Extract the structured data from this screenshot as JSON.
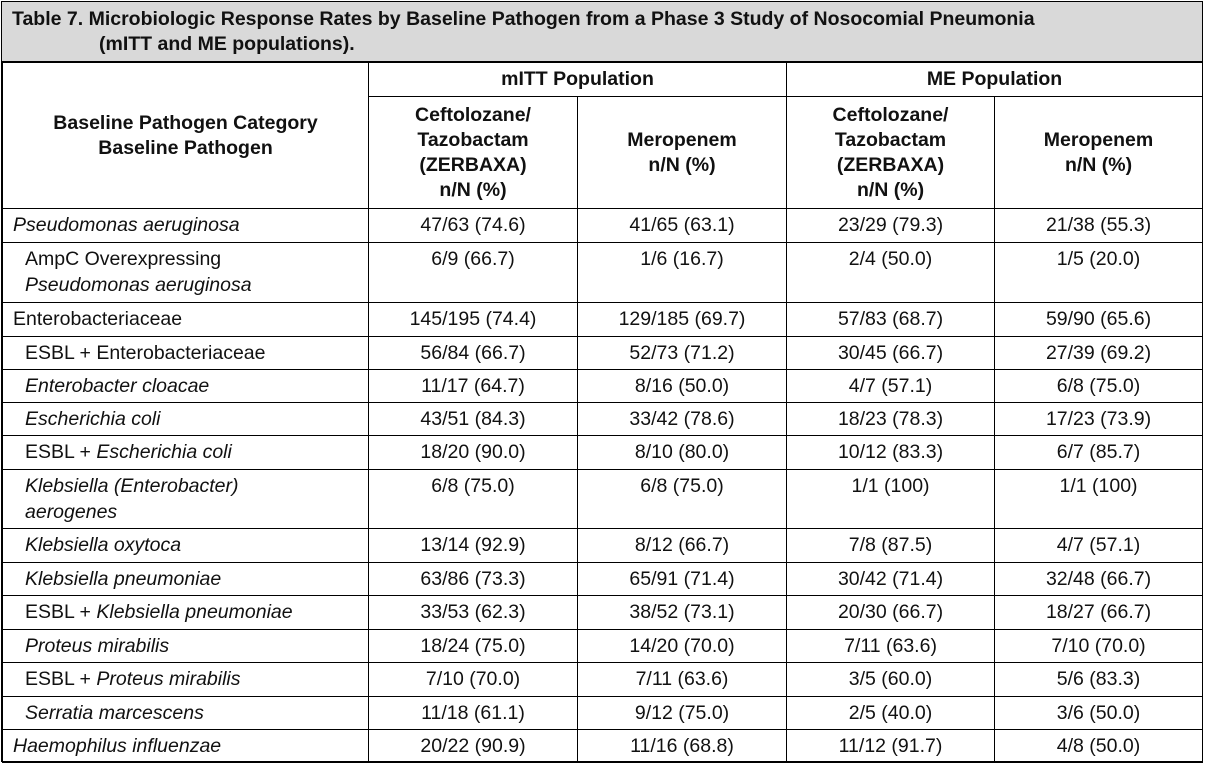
{
  "caption": {
    "line1": "Table 7. Microbiologic Response Rates by Baseline Pathogen from a Phase 3 Study of Nosocomial Pneumonia",
    "line2": "(mITT and ME populations)."
  },
  "headers": {
    "row_header_line1": "Baseline Pathogen Category",
    "row_header_line2": "Baseline Pathogen",
    "group1": "mITT Population",
    "group2": "ME Population",
    "col_cz": [
      "Ceftolozane/",
      "Tazobactam",
      "(ZERBAXA)",
      "n/N (%)"
    ],
    "col_mero": [
      "Meropenem",
      "n/N (%)"
    ]
  },
  "rows": [
    {
      "prefix": "",
      "name": "Pseudomonas aeruginosa",
      "name2": "",
      "values": [
        "47/63 (74.6)",
        "41/65 (63.1)",
        "23/29 (79.3)",
        "21/38 (55.3)"
      ]
    },
    {
      "prefix": "AmpC Overexpressing",
      "name": "",
      "name2": "Pseudomonas aeruginosa",
      "values": [
        "6/9 (66.7)",
        "1/6 (16.7)",
        "2/4 (50.0)",
        "1/5 (20.0)"
      ]
    },
    {
      "prefix": "Enterobacteriaceae",
      "name": "",
      "name2": "",
      "values": [
        "145/195 (74.4)",
        "129/185 (69.7)",
        "57/83 (68.7)",
        "59/90 (65.6)"
      ]
    },
    {
      "prefix": "ESBL + Enterobacteriaceae",
      "name": "",
      "name2": "",
      "values": [
        "56/84 (66.7)",
        "52/73 (71.2)",
        "30/45 (66.7)",
        "27/39 (69.2)"
      ]
    },
    {
      "prefix": "",
      "name": "Enterobacter cloacae",
      "name2": "",
      "values": [
        "11/17 (64.7)",
        "8/16 (50.0)",
        "4/7 (57.1)",
        "6/8 (75.0)"
      ]
    },
    {
      "prefix": "",
      "name": "Escherichia coli",
      "name2": "",
      "values": [
        "43/51 (84.3)",
        "33/42 (78.6)",
        "18/23 (78.3)",
        "17/23 (73.9)"
      ]
    },
    {
      "prefix": "ESBL + ",
      "name": "Escherichia coli",
      "name2": "",
      "values": [
        "18/20 (90.0)",
        "8/10 (80.0)",
        "10/12 (83.3)",
        "6/7 (85.7)"
      ]
    },
    {
      "prefix": "",
      "name": "Klebsiella (Enterobacter)",
      "name2": "aerogenes",
      "values": [
        "6/8 (75.0)",
        "6/8 (75.0)",
        "1/1 (100)",
        "1/1 (100)"
      ]
    },
    {
      "prefix": "",
      "name": "Klebsiella oxytoca",
      "name2": "",
      "values": [
        "13/14 (92.9)",
        "8/12 (66.7)",
        "7/8 (87.5)",
        "4/7 (57.1)"
      ]
    },
    {
      "prefix": "",
      "name": "Klebsiella pneumoniae",
      "name2": "",
      "values": [
        "63/86 (73.3)",
        "65/91 (71.4)",
        "30/42 (71.4)",
        "32/48 (66.7)"
      ]
    },
    {
      "prefix": "ESBL + ",
      "name": "Klebsiella pneumoniae",
      "name2": "",
      "values": [
        "33/53 (62.3)",
        "38/52 (73.1)",
        "20/30 (66.7)",
        "18/27 (66.7)"
      ]
    },
    {
      "prefix": "",
      "name": "Proteus mirabilis",
      "name2": "",
      "values": [
        "18/24 (75.0)",
        "14/20 (70.0)",
        "7/11 (63.6)",
        "7/10 (70.0)"
      ]
    },
    {
      "prefix": "ESBL + ",
      "name": "Proteus mirabilis",
      "name2": "",
      "values": [
        "7/10 (70.0)",
        "7/11 (63.6)",
        "3/5 (60.0)",
        "5/6 (83.3)"
      ]
    },
    {
      "prefix": "",
      "name": "Serratia marcescens",
      "name2": "",
      "values": [
        "11/18 (61.1)",
        "9/12 (75.0)",
        "2/5 (40.0)",
        "3/6 (50.0)"
      ]
    },
    {
      "prefix": "",
      "name": "Haemophilus influenzae",
      "name2": "",
      "values": [
        "20/22 (90.9)",
        "11/16 (68.8)",
        "11/12 (91.7)",
        "4/8 (50.0)"
      ]
    }
  ]
}
